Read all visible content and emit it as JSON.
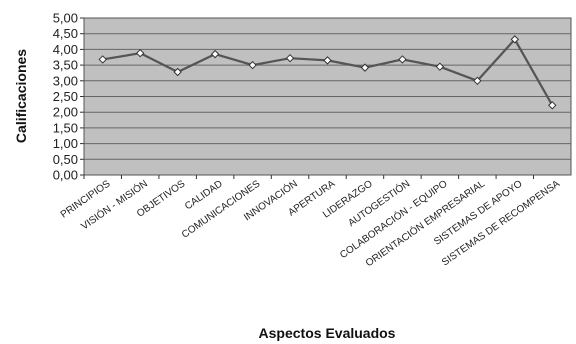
{
  "chart_data": {
    "type": "line",
    "title": "",
    "xlabel": "Aspectos Evaluados",
    "ylabel": "Calificaciones",
    "ylim": [
      0,
      5
    ],
    "y_tick_labels": [
      "0,00",
      "0,50",
      "1,00",
      "1,50",
      "2,00",
      "2,50",
      "3,00",
      "3,50",
      "4,00",
      "4,50",
      "5,00"
    ],
    "grid": true,
    "legend": "none",
    "categories": [
      "PRINCIPIOS",
      "VISIÓN - MISIÓN",
      "OBJETIVOS",
      "CALIDAD",
      "COMUNICACIONES",
      "INNOVACIÓN",
      "APERTURA",
      "LIDERAZGO",
      "AUTOGESTIÓN",
      "COLABORACIÓN - EQUIPO",
      "ORIENTACIÓN EMPRESARIAL",
      "SISTEMAS DE APOYO",
      "SISTEMAS DE RECOMPENSA"
    ],
    "series": [
      {
        "values": [
          3.68,
          3.88,
          3.28,
          3.85,
          3.5,
          3.72,
          3.65,
          3.42,
          3.68,
          3.45,
          3.0,
          4.32,
          2.22
        ]
      }
    ],
    "colors": {
      "plot_bg": "#c0c0c0",
      "line": "#555555",
      "marker_fill": "#ffffff",
      "grid": "#666666"
    }
  }
}
